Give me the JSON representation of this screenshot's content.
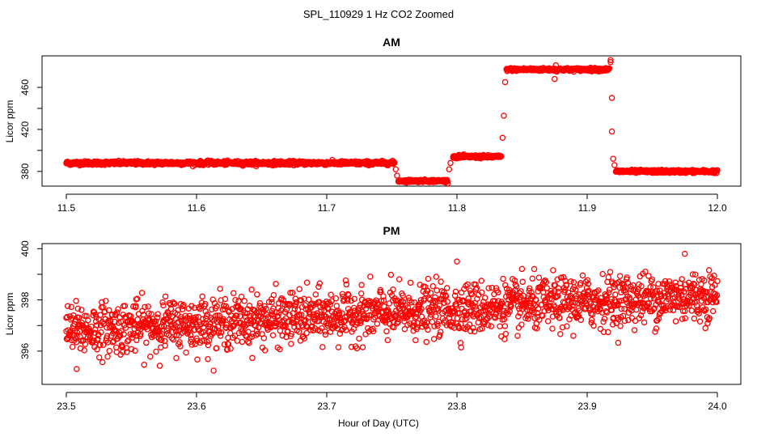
{
  "figure_title": "SPL_110929  1 Hz CO2 Zoomed",
  "shared_xlabel": "Hour of Day (UTC)",
  "colors": {
    "points": "#ff0000",
    "axes": "#000000",
    "background": "#ffffff"
  },
  "chart_data": [
    {
      "type": "scatter",
      "title": "AM",
      "xlabel": "",
      "ylabel": "Licor ppm",
      "xlim": [
        11.5,
        12.0
      ],
      "ylim": [
        366,
        490
      ],
      "xticks": [
        11.5,
        11.6,
        11.7,
        11.8,
        11.9,
        12.0
      ],
      "xtick_labels": [
        "11.5",
        "11.6",
        "11.7",
        "11.8",
        "11.9",
        "12.0"
      ],
      "yticks": [
        380,
        420,
        460
      ],
      "ytick_labels": [
        "380",
        "420",
        "460"
      ],
      "marker": "open-circle",
      "segments": [
        {
          "x_start": 11.5,
          "x_end": 11.752,
          "y_mean": 388,
          "spread": 1.5
        },
        {
          "x_start": 11.755,
          "x_end": 11.793,
          "y_mean": 371,
          "spread": 1.0
        },
        {
          "x_start": 11.797,
          "x_end": 11.834,
          "y_mean": 394,
          "spread": 1.2
        },
        {
          "x_start": 11.838,
          "x_end": 11.917,
          "y_mean": 477,
          "spread": 1.2
        },
        {
          "x_start": 11.922,
          "x_end": 12.0,
          "y_mean": 380,
          "spread": 1.2
        }
      ],
      "transition_points": [
        [
          11.753,
          382
        ],
        [
          11.754,
          376
        ],
        [
          11.794,
          382
        ],
        [
          11.795,
          388
        ],
        [
          11.835,
          412
        ],
        [
          11.836,
          433
        ],
        [
          11.837,
          465
        ],
        [
          11.875,
          468
        ],
        [
          11.876,
          481
        ],
        [
          11.918,
          486
        ],
        [
          11.918,
          484
        ],
        [
          11.919,
          450
        ],
        [
          11.919,
          418
        ],
        [
          11.92,
          392
        ],
        [
          11.921,
          386
        ]
      ]
    },
    {
      "type": "scatter",
      "title": "PM",
      "xlabel": "Hour of Day (UTC)",
      "ylabel": "Licor ppm",
      "xlim": [
        23.5,
        24.0
      ],
      "ylim": [
        394.7,
        400.2
      ],
      "xticks": [
        23.5,
        23.6,
        23.7,
        23.8,
        23.9,
        24.0
      ],
      "xtick_labels": [
        "23.5",
        "23.6",
        "23.7",
        "23.8",
        "23.9",
        "24.0"
      ],
      "yticks": [
        396,
        398,
        400
      ],
      "ytick_labels": [
        "396",
        "398",
        "400"
      ],
      "marker": "open-circle",
      "trend": {
        "x_start": 23.5,
        "x_end": 24.0,
        "y_start": 396.8,
        "y_end": 398.2,
        "noise_sd": 0.5
      },
      "point_count": 1800,
      "notable_points": [
        [
          23.508,
          395.3
        ],
        [
          23.975,
          399.8
        ],
        [
          23.8,
          399.5
        ],
        [
          23.5,
          397.3
        ]
      ]
    }
  ]
}
